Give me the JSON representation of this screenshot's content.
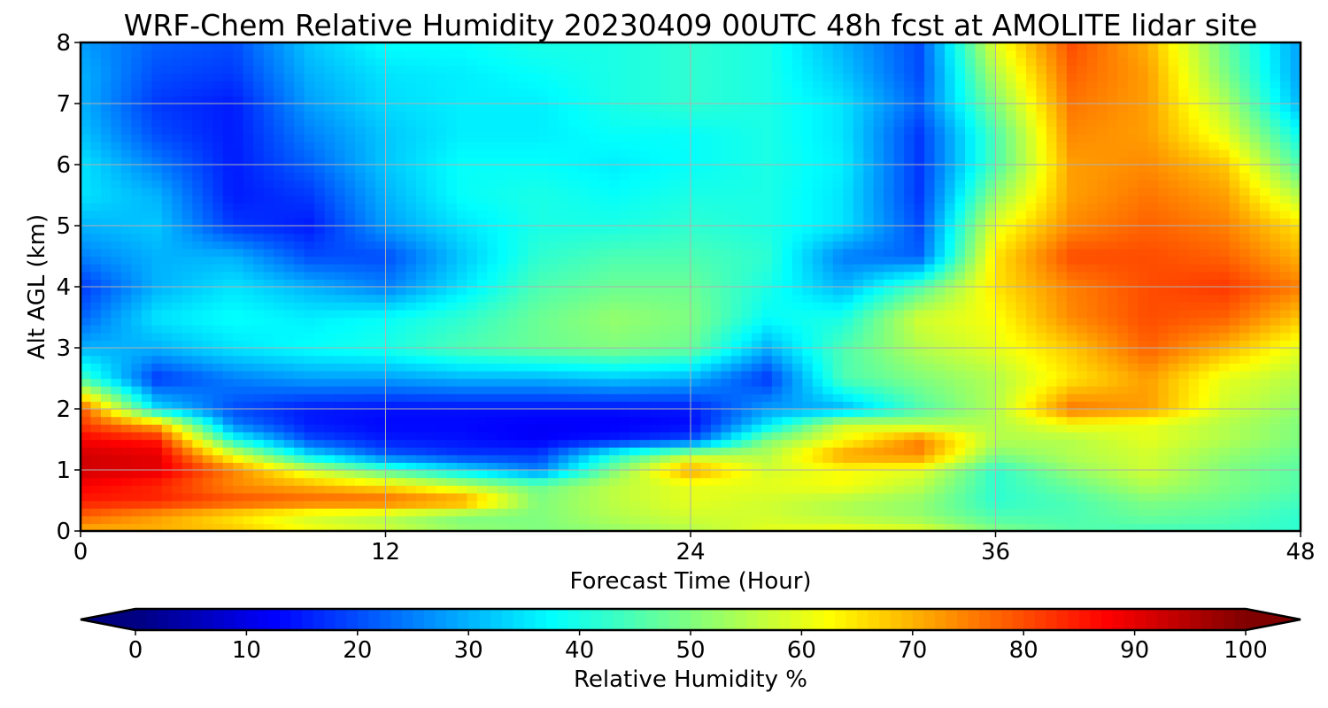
{
  "chart_data": {
    "type": "heatmap",
    "title": "WRF-Chem Relative Humidity 20230409 00UTC 48h fcst at AMOLITE lidar site",
    "xlabel": "Forecast Time (Hour)",
    "ylabel": "Alt AGL (km)",
    "xlim": [
      0,
      48
    ],
    "ylim": [
      0,
      8
    ],
    "x_ticks": [
      "0",
      "12",
      "24",
      "36",
      "48"
    ],
    "y_ticks": [
      "0",
      "1",
      "2",
      "3",
      "4",
      "5",
      "6",
      "7",
      "8"
    ],
    "grid": true,
    "colormap": "jet",
    "colorbar": {
      "label": "Relative Humidity %",
      "range": [
        0,
        100
      ],
      "ticks": [
        "0",
        "10",
        "20",
        "30",
        "40",
        "50",
        "60",
        "70",
        "80",
        "90",
        "100"
      ],
      "extend": "both"
    },
    "x": [
      0,
      3,
      6,
      9,
      12,
      15,
      18,
      21,
      24,
      27,
      30,
      33,
      36,
      39,
      42,
      45,
      48
    ],
    "y": [
      0,
      0.25,
      0.5,
      0.75,
      1,
      1.25,
      1.5,
      1.75,
      2,
      2.5,
      3,
      3.5,
      4,
      4.5,
      5,
      5.5,
      6,
      6.5,
      7,
      7.5,
      8
    ],
    "z": [
      [
        70,
        70,
        68,
        62,
        58,
        52,
        50,
        52,
        55,
        60,
        62,
        60,
        50,
        46,
        44,
        44,
        42
      ],
      [
        78,
        72,
        65,
        58,
        55,
        50,
        50,
        55,
        58,
        58,
        55,
        52,
        45,
        45,
        48,
        46,
        42
      ],
      [
        85,
        84,
        80,
        78,
        78,
        74,
        50,
        56,
        60,
        58,
        55,
        52,
        42,
        45,
        50,
        48,
        44
      ],
      [
        88,
        84,
        74,
        70,
        65,
        56,
        48,
        56,
        60,
        60,
        62,
        56,
        42,
        48,
        55,
        50,
        46
      ],
      [
        92,
        90,
        75,
        58,
        45,
        35,
        25,
        50,
        72,
        58,
        62,
        60,
        42,
        52,
        58,
        50,
        46
      ],
      [
        92,
        90,
        60,
        35,
        22,
        18,
        18,
        40,
        55,
        55,
        72,
        74,
        50,
        55,
        58,
        52,
        48
      ],
      [
        88,
        85,
        40,
        20,
        15,
        14,
        12,
        15,
        20,
        50,
        62,
        75,
        55,
        55,
        60,
        55,
        50
      ],
      [
        82,
        70,
        25,
        15,
        13,
        13,
        12,
        12,
        13,
        35,
        58,
        55,
        55,
        62,
        60,
        55,
        50
      ],
      [
        80,
        35,
        20,
        15,
        14,
        14,
        14,
        14,
        15,
        28,
        30,
        45,
        55,
        76,
        72,
        58,
        52
      ],
      [
        45,
        18,
        25,
        28,
        28,
        30,
        30,
        32,
        30,
        18,
        45,
        50,
        55,
        65,
        72,
        60,
        55
      ],
      [
        30,
        30,
        35,
        38,
        40,
        45,
        48,
        50,
        48,
        30,
        45,
        55,
        60,
        68,
        78,
        70,
        60
      ],
      [
        22,
        35,
        38,
        36,
        38,
        42,
        48,
        52,
        50,
        38,
        40,
        58,
        62,
        74,
        80,
        78,
        68
      ],
      [
        18,
        30,
        35,
        30,
        25,
        35,
        45,
        48,
        48,
        40,
        30,
        45,
        65,
        75,
        80,
        82,
        75
      ],
      [
        25,
        30,
        30,
        20,
        20,
        32,
        42,
        45,
        45,
        42,
        25,
        22,
        65,
        80,
        80,
        78,
        70
      ],
      [
        30,
        32,
        18,
        15,
        28,
        35,
        40,
        40,
        42,
        40,
        35,
        20,
        60,
        74,
        78,
        75,
        65
      ],
      [
        35,
        30,
        15,
        18,
        30,
        38,
        40,
        38,
        40,
        40,
        35,
        18,
        52,
        72,
        76,
        72,
        55
      ],
      [
        35,
        25,
        15,
        22,
        32,
        38,
        38,
        36,
        38,
        40,
        36,
        18,
        45,
        72,
        74,
        68,
        45
      ],
      [
        32,
        20,
        15,
        25,
        32,
        36,
        36,
        38,
        38,
        40,
        35,
        18,
        45,
        74,
        72,
        60,
        38
      ],
      [
        30,
        18,
        15,
        28,
        34,
        36,
        36,
        40,
        42,
        40,
        35,
        22,
        50,
        76,
        72,
        55,
        30
      ],
      [
        30,
        20,
        18,
        30,
        35,
        36,
        38,
        40,
        42,
        40,
        32,
        20,
        55,
        78,
        72,
        50,
        28
      ],
      [
        28,
        22,
        20,
        32,
        38,
        38,
        40,
        40,
        42,
        40,
        30,
        20,
        60,
        80,
        70,
        48,
        28
      ]
    ]
  }
}
